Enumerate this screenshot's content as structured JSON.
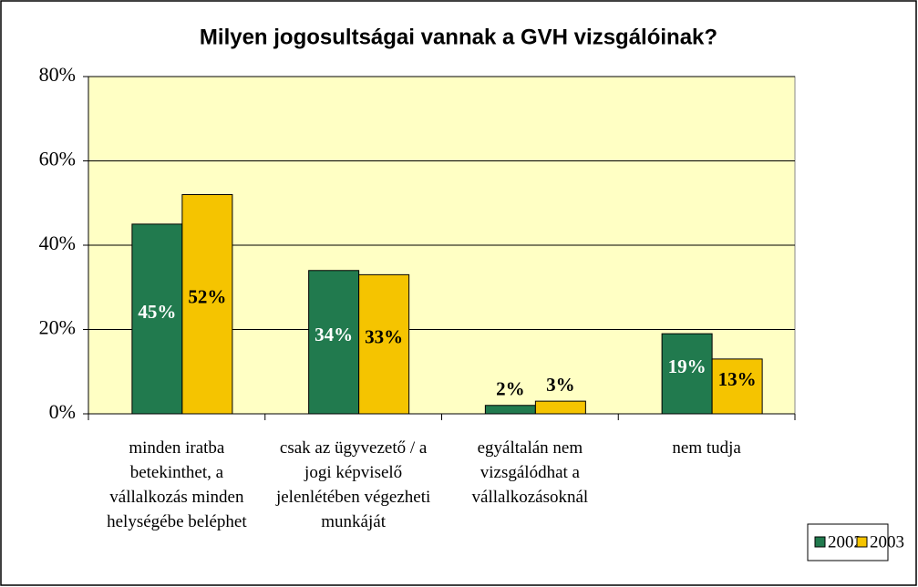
{
  "chart_data": {
    "type": "bar",
    "title": "Milyen jogosultságai vannak a GVH vizsgálóinak?",
    "categories": [
      "minden iratba betekinthet, a vállalkozás minden helységébe beléphet",
      "csak az ügyvezető / a jogi képviselő jelenlétében végezheti munkáját",
      "egyáltalán nem vizsgálódhat a vállalkozásoknál",
      "nem tudja"
    ],
    "series": [
      {
        "name": "2002",
        "color": "#217a4e",
        "values": [
          45,
          34,
          2,
          19
        ],
        "value_labels": [
          "45%",
          "34%",
          "2%",
          "19%"
        ]
      },
      {
        "name": "2003",
        "color": "#f5c400",
        "values": [
          52,
          33,
          3,
          13
        ],
        "value_labels": [
          "52%",
          "33%",
          "3%",
          "13%"
        ]
      }
    ],
    "ylim": [
      0,
      80
    ],
    "yticks": [
      {
        "value": 0,
        "label": "0%"
      },
      {
        "value": 20,
        "label": "20%"
      },
      {
        "value": 40,
        "label": "40%"
      },
      {
        "value": 60,
        "label": "60%"
      },
      {
        "value": 80,
        "label": "80%"
      }
    ],
    "grid": true,
    "legend": "bottom-right",
    "plot_background": "#ffffc4"
  }
}
